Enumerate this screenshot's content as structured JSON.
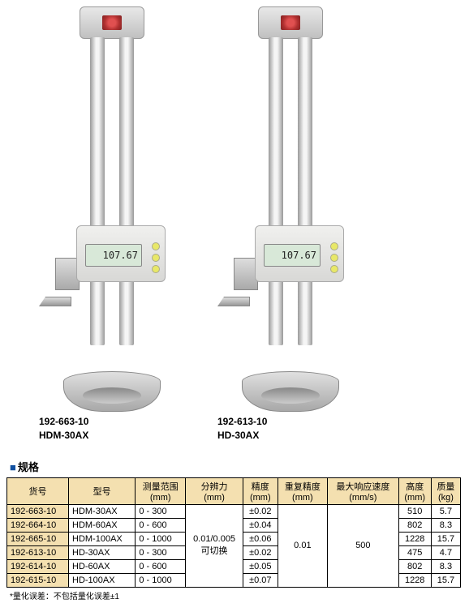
{
  "products": [
    {
      "code": "192-663-10",
      "model": "HDM-30AX",
      "lcd": "107.67"
    },
    {
      "code": "192-613-10",
      "model": "HD-30AX",
      "lcd": "107.67"
    }
  ],
  "section_marker": "■",
  "section_title": "规格",
  "table": {
    "headers": [
      "货号",
      "型号",
      {
        "l1": "测量范围",
        "l2": "(mm)"
      },
      {
        "l1": "分辨力",
        "l2": "(mm)"
      },
      {
        "l1": "精度",
        "l2": "(mm)"
      },
      {
        "l1": "重复精度",
        "l2": "(mm)"
      },
      {
        "l1": "最大响应速度",
        "l2": "(mm/s)"
      },
      {
        "l1": "高度",
        "l2": "(mm)"
      },
      {
        "l1": "质量",
        "l2": "(kg)"
      }
    ],
    "resolution": {
      "l1": "0.01/0.005",
      "l2": "可切换"
    },
    "repeat": "0.01",
    "speed": "500",
    "rows": [
      {
        "code": "192-663-10",
        "model": "HDM-30AX",
        "range": "0 - 300",
        "acc": "±0.02",
        "h": "510",
        "w": "5.7"
      },
      {
        "code": "192-664-10",
        "model": "HDM-60AX",
        "range": "0 - 600",
        "acc": "±0.04",
        "h": "802",
        "w": "8.3"
      },
      {
        "code": "192-665-10",
        "model": "HDM-100AX",
        "range": "0 - 1000",
        "acc": "±0.06",
        "h": "1228",
        "w": "15.7"
      },
      {
        "code": "192-613-10",
        "model": "HD-30AX",
        "range": "0 - 300",
        "acc": "±0.02",
        "h": "475",
        "w": "4.7"
      },
      {
        "code": "192-614-10",
        "model": "HD-60AX",
        "range": "0 - 600",
        "acc": "±0.05",
        "h": "802",
        "w": "8.3"
      },
      {
        "code": "192-615-10",
        "model": "HD-100AX",
        "range": "0 - 1000",
        "acc": "±0.07",
        "h": "1228",
        "w": "15.7"
      }
    ]
  },
  "footnote": "*量化误差：不包括量化误差±1",
  "colors": {
    "header_bg": "#f4e0b0",
    "title_marker": "#1050a0"
  }
}
